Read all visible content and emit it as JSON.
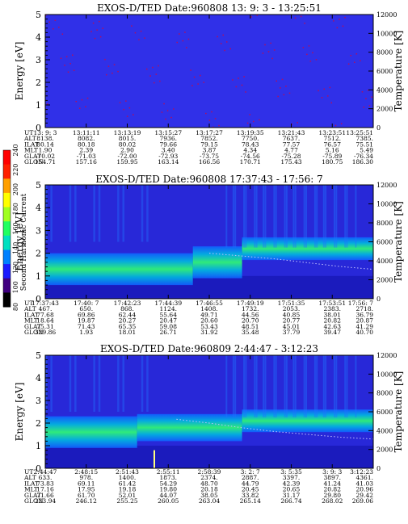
{
  "panels": [
    {
      "title": "EXOS-D/TED   Date:960808  13: 9: 3 - 13:25:51",
      "eph": {
        "labels": [
          "UT",
          "ALT",
          "ILAT",
          "MLT",
          "GLAT",
          "GLON"
        ],
        "columns": [
          [
            "13: 9: 3",
            "8138.",
            "80.14",
            "1.90",
            "-70.02",
            "154.71"
          ],
          [
            "13:11:11",
            "8082.",
            "80.18",
            "2.39",
            "-71.03",
            "157.16"
          ],
          [
            "13:13:19",
            "8015.",
            "80.02",
            "2.90",
            "-72.00",
            "159.95"
          ],
          [
            "13:15:27",
            "7936.",
            "79.66",
            "3.40",
            "-72.93",
            "163.14"
          ],
          [
            "13:17:27",
            "7852.",
            "79.15",
            "3.87",
            "-73.75",
            "166.56"
          ],
          [
            "13:19:35",
            "7750.",
            "78.43",
            "4.34",
            "-74.56",
            "170.71"
          ],
          [
            "13:21:43",
            "7637.",
            "77.57",
            "4.77",
            "-75.28",
            "175.43"
          ],
          [
            "13:23:51",
            "7512.",
            "76.57",
            "5.16",
            "-75.89",
            "180.75"
          ],
          [
            "13:25:51",
            "7385.",
            "75.51",
            "5.49",
            "-76.34",
            "186.30"
          ]
        ]
      }
    },
    {
      "title": "EXOS-D/TED   Date:960808  17:37:43 - 17:56: 7",
      "eph": {
        "labels": [
          "UT",
          "ALT",
          "ILAT",
          "MLT",
          "GLAT",
          "GLON"
        ],
        "columns": [
          [
            "17:37:43",
            "467.",
            "77.68",
            "18.64",
            "75.31",
            "329.86"
          ],
          [
            "17:40: 7",
            "650.",
            "69.86",
            "19.87",
            "71.43",
            "1.93"
          ],
          [
            "17:42:23",
            "868.",
            "62.44",
            "20.27",
            "65.35",
            "18.01"
          ],
          [
            "17:44:39",
            "1124.",
            "55.64",
            "20.47",
            "59.08",
            "26.71"
          ],
          [
            "17:46:55",
            "1408.",
            "49.71",
            "20.60",
            "53.43",
            "31.92"
          ],
          [
            "17:49:19",
            "1732.",
            "44.56",
            "20.70",
            "48.51",
            "35.48"
          ],
          [
            "17:51:35",
            "2053.",
            "40.85",
            "20.77",
            "45.01",
            "37.79"
          ],
          [
            "17:53:51",
            "2383.",
            "38.01",
            "20.82",
            "42.63",
            "39.47"
          ],
          [
            "17:56: 7",
            "2718.",
            "36.79",
            "20.87",
            "41.29",
            "40.70"
          ]
        ]
      }
    },
    {
      "title": "EXOS-D/TED   Date:960809  2:44:47 - 3:12:23",
      "eph": {
        "labels": [
          "UT",
          "ALT",
          "ILAT",
          "MLT",
          "GLAT",
          "GLON"
        ],
        "columns": [
          [
            "2:44:47",
            "633.",
            "73.83",
            "17.16",
            "71.66",
            "223.94"
          ],
          [
            "2:48:15",
            "978.",
            "69.11",
            "17.95",
            "61.70",
            "246.12"
          ],
          [
            "2:51:43",
            "1400.",
            "61.42",
            "19.18",
            "52.01",
            "255.25"
          ],
          [
            "2:55:11",
            "1873.",
            "54.29",
            "19.80",
            "44.07",
            "260.05"
          ],
          [
            "2:58:39",
            "2374.",
            "48.70",
            "20.18",
            "38.05",
            "263.04"
          ],
          [
            "3: 2: 7",
            "2887.",
            "44.79",
            "20.45",
            "33.82",
            "265.14"
          ],
          [
            "3: 5:35",
            "3397.",
            "42.39",
            "20.65",
            "31.17",
            "266.74"
          ],
          [
            "3: 9: 3",
            "3897.",
            "41.24",
            "20.82",
            "29.80",
            "268.02"
          ],
          [
            "3:12:23",
            "4361.",
            "41.03",
            "20.96",
            "29.42",
            "269.06"
          ]
        ]
      }
    }
  ],
  "colorbar": {
    "label": "Second Harmonic Current",
    "ticks": [
      "80",
      "100",
      "120",
      "140",
      "160",
      "180",
      "200",
      "220",
      "240"
    ],
    "range": [
      80,
      240
    ],
    "colors": [
      "#000000",
      "#400080",
      "#1a1aff",
      "#0080ff",
      "#00e0c0",
      "#20ff60",
      "#a0ff20",
      "#ffff00",
      "#ffa000",
      "#ff2000",
      "#ff0000"
    ]
  },
  "chart_data": [
    {
      "type": "heatmap",
      "title": "EXOS-D/TED   Date:960808  13: 9: 3 - 13:25:51",
      "ylabel": "Energy [eV]",
      "ylabel_right": "Temperature [K]",
      "ylim": [
        0,
        5
      ],
      "ylim_right": [
        0,
        12000
      ],
      "yticks": [
        0,
        1,
        2,
        3,
        4,
        5
      ],
      "yticks_right": [
        0,
        2000,
        4000,
        6000,
        8000,
        10000,
        12000
      ],
      "xticks": [
        "13: 9: 3",
        "13:11:11",
        "13:13:19",
        "13:15:27",
        "13:17:27",
        "13:19:35",
        "13:21:43",
        "13:23:51",
        "13:25:51"
      ],
      "bands": [],
      "temperature": []
    },
    {
      "type": "heatmap",
      "title": "EXOS-D/TED   Date:960808  17:37:43 - 17:56: 7",
      "ylabel": "Energy [eV]",
      "ylabel_right": "Temperature [K]",
      "ylim": [
        0,
        5
      ],
      "ylim_right": [
        0,
        12000
      ],
      "yticks": [
        0,
        1,
        2,
        3,
        4,
        5
      ],
      "yticks_right": [
        0,
        2000,
        4000,
        6000,
        8000,
        10000,
        12000
      ],
      "xticks": [
        "17:37:43",
        "17:40: 7",
        "17:42:23",
        "17:44:39",
        "17:46:55",
        "17:49:19",
        "17:51:35",
        "17:53:51",
        "17:56: 7"
      ],
      "bands": [
        {
          "x": [
            0,
            0.45
          ],
          "center": 1.3,
          "half_width": 0.35
        },
        {
          "x": [
            0.45,
            0.6
          ],
          "center": 1.6,
          "half_width": 0.35
        },
        {
          "x": [
            0.6,
            1.0
          ],
          "center": 2.2,
          "half_width": 0.25
        }
      ],
      "temperature": [
        [
          0.5,
          4800
        ],
        [
          0.6,
          4500
        ],
        [
          0.7,
          4200
        ],
        [
          0.8,
          3800
        ],
        [
          0.9,
          3400
        ],
        [
          1.0,
          3100
        ]
      ]
    },
    {
      "type": "heatmap",
      "title": "EXOS-D/TED   Date:960809  2:44:47 - 3:12:23",
      "ylabel": "Energy [eV]",
      "ylabel_right": "Temperature [K]",
      "ylim": [
        0,
        5
      ],
      "ylim_right": [
        0,
        12000
      ],
      "yticks": [
        0,
        1,
        2,
        3,
        4,
        5
      ],
      "yticks_right": [
        0,
        2000,
        4000,
        6000,
        8000,
        10000,
        12000
      ],
      "xticks": [
        "2:44:47",
        "2:48:15",
        "2:51:43",
        "2:55:11",
        "2:58:39",
        "3: 2: 7",
        "3: 5:35",
        "3: 9: 3",
        "3:12:23"
      ],
      "bands": [
        {
          "x": [
            0,
            0.28
          ],
          "center": 1.6,
          "half_width": 0.35
        },
        {
          "x": [
            0.28,
            0.6
          ],
          "center": 1.8,
          "half_width": 0.3
        },
        {
          "x": [
            0.6,
            1.0
          ],
          "center": 2.1,
          "half_width": 0.25
        }
      ],
      "temperature": [
        [
          0.4,
          5200
        ],
        [
          0.5,
          4800
        ],
        [
          0.6,
          4300
        ],
        [
          0.7,
          3900
        ],
        [
          0.8,
          3600
        ],
        [
          0.9,
          3300
        ],
        [
          1.0,
          3100
        ]
      ]
    }
  ]
}
